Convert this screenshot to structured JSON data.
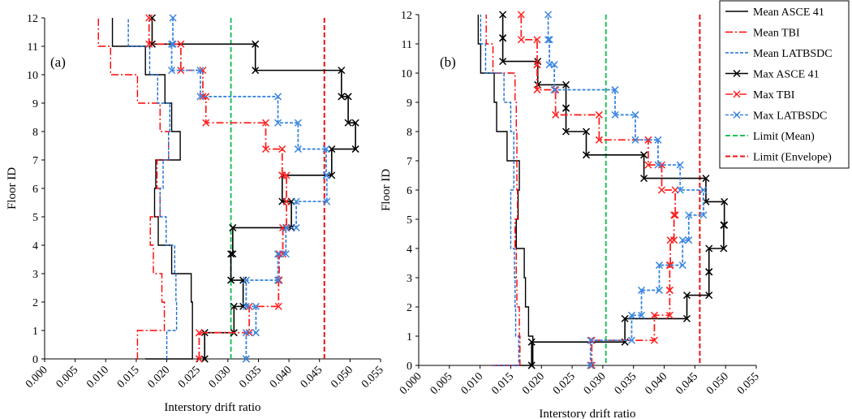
{
  "colors": {
    "mean_asce": "#000000",
    "mean_tbi": "#ff0000",
    "mean_latbsdc": "#1f6fd0",
    "max_asce": "#000000",
    "max_tbi": "#ff2020",
    "max_latbsdc": "#3a86e0",
    "limit_mean": "#22c05a",
    "limit_env": "#ee1111"
  },
  "chart_data": [
    {
      "type": "line",
      "panel_label": "(a)",
      "xlabel": "Interstory drift ratio",
      "ylabel": "Floor ID",
      "xlim": [
        0,
        0.055
      ],
      "ylim": [
        0,
        12
      ],
      "xticks": [
        "0.000",
        "0.005",
        "0.010",
        "0.015",
        "0.020",
        "0.025",
        "0.030",
        "0.035",
        "0.040",
        "0.045",
        "0.050",
        "0.055"
      ],
      "yticks": [
        "0",
        "1",
        "2",
        "3",
        "4",
        "5",
        "6",
        "7",
        "8",
        "9",
        "10",
        "11",
        "12"
      ],
      "limits": [
        {
          "name": "Limit (Mean)",
          "value": 0.0305
        },
        {
          "name": "Limit (Envelope)",
          "value": 0.0458
        }
      ],
      "series": [
        {
          "name": "Mean ASCE 41",
          "key": "mean_asce",
          "style": "solid",
          "values": [
            0.0165,
            0.0242,
            0.0242,
            0.024,
            0.0208,
            0.0186,
            0.018,
            0.0182,
            0.0222,
            0.0208,
            0.0197,
            0.0165,
            0.0111
          ]
        },
        {
          "name": "Mean TBI",
          "key": "mean_tbi",
          "style": "dashdot",
          "values": [
            0.0151,
            0.0152,
            0.0196,
            0.0192,
            0.0178,
            0.0173,
            0.0189,
            0.0184,
            0.0203,
            0.0189,
            0.0152,
            0.0108,
            0.0088
          ]
        },
        {
          "name": "Mean LATBSDC",
          "key": "mean_latbsdc",
          "style": "dash",
          "values": [
            0.02,
            0.02,
            0.0216,
            0.0215,
            0.0213,
            0.0199,
            0.0189,
            0.0194,
            0.0203,
            0.0205,
            0.0185,
            0.0172,
            0.0137
          ]
        },
        {
          "name": "Max ASCE 41",
          "key": "max_asce",
          "style": "solidmarker",
          "values": [
            0.0262,
            0.0262,
            0.031,
            0.0325,
            0.0305,
            0.0308,
            0.0404,
            0.0389,
            0.047,
            0.0509,
            0.0497,
            0.0486,
            0.0345,
            0.0176
          ]
        },
        {
          "name": "Max TBI",
          "key": "max_tbi",
          "style": "dashdotmarker",
          "values": [
            0.0253,
            0.0253,
            0.0335,
            0.0383,
            0.0384,
            0.039,
            0.0396,
            0.0396,
            0.0389,
            0.0362,
            0.0264,
            0.0259,
            0.0223,
            0.0171
          ]
        },
        {
          "name": "Max LATBSDC",
          "key": "max_latbsdc",
          "style": "dashmarker",
          "values": [
            0.033,
            0.033,
            0.0346,
            0.033,
            0.0382,
            0.0395,
            0.0412,
            0.0462,
            0.0461,
            0.0415,
            0.0382,
            0.0255,
            0.0208,
            0.021
          ]
        }
      ]
    },
    {
      "type": "line",
      "panel_label": "(b)",
      "xlabel": "Interstory drift ratio",
      "ylabel": "Floor ID",
      "xlim": [
        0,
        0.055
      ],
      "ylim": [
        0,
        12
      ],
      "xticks": [
        "0.000",
        "0.005",
        "0.010",
        "0.015",
        "0.020",
        "0.025",
        "0.030",
        "0.035",
        "0.040",
        "0.045",
        "0.050",
        "0.055"
      ],
      "yticks": [
        "0",
        "1",
        "2",
        "3",
        "4",
        "5",
        "6",
        "7",
        "8",
        "9",
        "10",
        "11",
        "12"
      ],
      "limits": [
        {
          "name": "Limit (Mean)",
          "value": 0.0305
        },
        {
          "name": "Limit (Envelope)",
          "value": 0.0458
        }
      ],
      "series": [
        {
          "name": "Mean ASCE 41",
          "key": "mean_asce",
          "style": "solid",
          "values": [
            0.0125,
            0.0186,
            0.0179,
            0.0174,
            0.0172,
            0.0159,
            0.0162,
            0.0164,
            0.0144,
            0.0127,
            0.0123,
            0.0101,
            0.0097
          ]
        },
        {
          "name": "Mean TBI",
          "key": "mean_tbi",
          "style": "dashdot",
          "values": [
            0.0118,
            0.0165,
            0.0164,
            0.016,
            0.0159,
            0.0157,
            0.0161,
            0.016,
            0.016,
            0.0159,
            0.0157,
            0.0121,
            0.011
          ]
        },
        {
          "name": "Mean LATBSDC",
          "key": "mean_latbsdc",
          "style": "dash",
          "values": [
            0.012,
            0.0163,
            0.0158,
            0.0157,
            0.0156,
            0.015,
            0.015,
            0.0155,
            0.0155,
            0.015,
            0.0139,
            0.0109,
            0.0101
          ]
        },
        {
          "name": "Max ASCE 41",
          "key": "max_asce",
          "style": "solidmarker",
          "values": [
            0.0184,
            0.0184,
            0.0336,
            0.0437,
            0.0473,
            0.0473,
            0.0497,
            0.0498,
            0.0468,
            0.0367,
            0.0273,
            0.024,
            0.024,
            0.0194,
            0.0137,
            0.0137
          ]
        },
        {
          "name": "Max TBI",
          "key": "max_tbi",
          "style": "dashdotmarker",
          "values": [
            0.0282,
            0.0282,
            0.0384,
            0.0409,
            0.0409,
            0.041,
            0.0416,
            0.0418,
            0.0396,
            0.0374,
            0.0294,
            0.0223,
            0.0193,
            0.0193,
            0.0167
          ]
        },
        {
          "name": "Max LATBSDC",
          "key": "max_latbsdc",
          "style": "dashmarker",
          "values": [
            0.028,
            0.028,
            0.0347,
            0.0363,
            0.0392,
            0.043,
            0.044,
            0.0464,
            0.0426,
            0.039,
            0.0353,
            0.032,
            0.0221,
            0.0213,
            0.0211
          ]
        }
      ]
    }
  ],
  "legend": {
    "items": [
      {
        "label": "Mean ASCE 41",
        "key": "mean_asce",
        "style": "solid"
      },
      {
        "label": "Mean TBI",
        "key": "mean_tbi",
        "style": "dashdot"
      },
      {
        "label": "Mean LATBSDC",
        "key": "mean_latbsdc",
        "style": "dash"
      },
      {
        "label": "Max ASCE 41",
        "key": "max_asce",
        "style": "solidmarker"
      },
      {
        "label": "Max TBI",
        "key": "max_tbi",
        "style": "dashdotmarker"
      },
      {
        "label": "Max LATBSDC",
        "key": "max_latbsdc",
        "style": "dashmarker"
      },
      {
        "label": "Limit (Mean)",
        "key": "limit_mean",
        "style": "limitdash"
      },
      {
        "label": "Limit (Envelope)",
        "key": "limit_env",
        "style": "limitdash"
      }
    ]
  }
}
